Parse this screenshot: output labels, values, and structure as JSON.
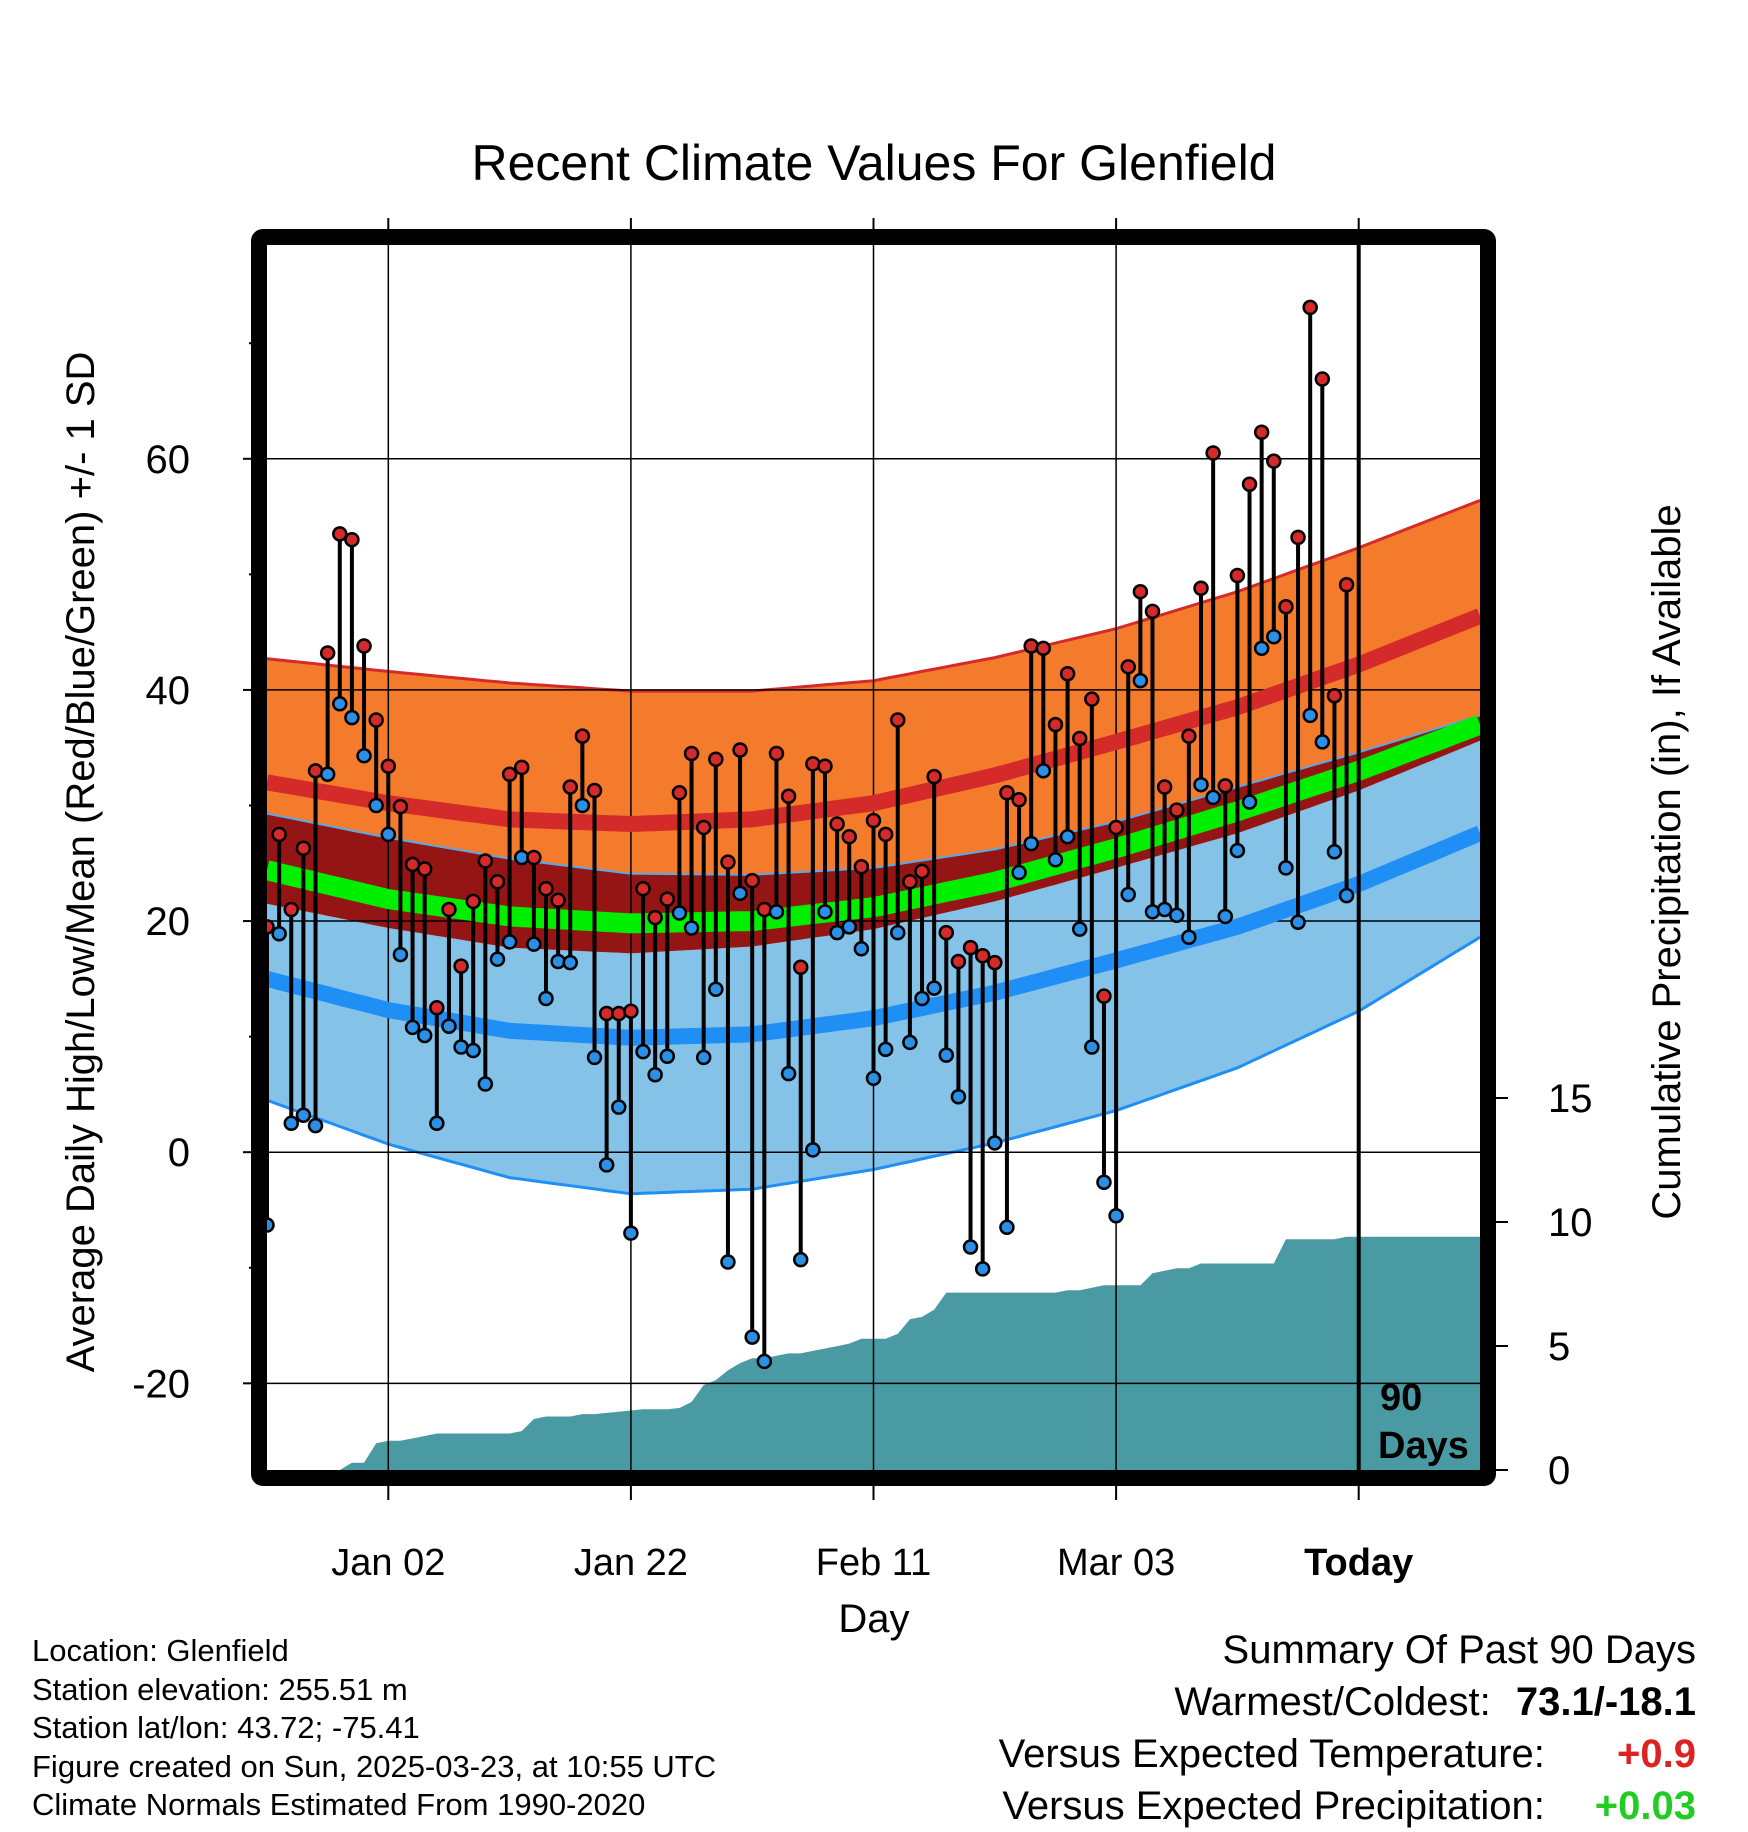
{
  "title": "Recent Climate Values For Glenfield",
  "y_label_left": "Average Daily High/Low/Mean (Red/Blue/Green) +/- 1 SD",
  "y_label_right": "Cumulative Precipitation (in), If Available",
  "x_label": "Day",
  "marker_text_1": "90",
  "marker_text_2": "Days",
  "info": {
    "location": "Location: Glenfield",
    "elevation": "Station elevation: 255.51 m",
    "latlon": "Station lat/lon: 43.72; -75.41",
    "created": "Figure created on Sun, 2025-03-23, at 10:55 UTC",
    "normals": "Climate Normals Estimated From 1990-2020"
  },
  "summary": {
    "heading": "Summary Of Past 90 Days",
    "warm_cold_label": "Warmest/Coldest:",
    "warm_cold_value": "73.1/-18.1",
    "temp_label": "Versus Expected Temperature:",
    "temp_value": "+0.9",
    "temp_color": "#dd2222",
    "precip_label": "Versus Expected Precipitation:",
    "precip_value": "+0.03",
    "precip_color": "#22cc22"
  },
  "chart_data": {
    "type": "line",
    "title": "Recent Climate Values For Glenfield",
    "xlabel": "Day",
    "ylabel": "Average Daily High/Low/Mean (Red/Blue/Green) +/- 1 SD",
    "y2label": "Cumulative Precipitation (in), If Available",
    "x_tick_labels": [
      "Jan 02",
      "Jan 22",
      "Feb 11",
      "Mar 03",
      "Today"
    ],
    "x_tick_days": [
      10,
      30,
      50,
      70,
      90
    ],
    "y_ticks": [
      -20,
      0,
      20,
      40,
      60
    ],
    "y_ticks_right": [
      0,
      5,
      10,
      15
    ],
    "ylim": [
      -27.5,
      78.5
    ],
    "xlim": [
      0,
      100
    ],
    "today_day": 90,
    "grid": true,
    "colors": {
      "high_band": "#f47b2c",
      "high_mean": "#d42a2a",
      "overlap_band": "#951515",
      "low_band": "#84c2e8",
      "low_mean": "#1f8ff5",
      "mean_line": "#00ee00",
      "precip": "#4a9aa4"
    },
    "normals": {
      "days": [
        0,
        10,
        20,
        30,
        40,
        50,
        60,
        70,
        80,
        90,
        100
      ],
      "high_mean": [
        32,
        30.2,
        28.8,
        28.4,
        28.8,
        30.2,
        32.6,
        35.5,
        38.5,
        42.2,
        46.4
      ],
      "high_sd_upper": [
        42.7,
        41.6,
        40.6,
        39.9,
        39.9,
        40.8,
        42.8,
        45.3,
        48.5,
        52.3,
        56.4
      ],
      "high_sd_lower": [
        29.3,
        27.2,
        25.4,
        24.1,
        24.0,
        24.6,
        26.2,
        28.6,
        31.6,
        34.6,
        37.8
      ],
      "low_mean": [
        15.0,
        12.3,
        10.5,
        9.9,
        10.2,
        11.6,
        13.8,
        16.6,
        19.5,
        23.2,
        27.6
      ],
      "low_sd_upper": [
        21.5,
        19.4,
        17.7,
        17.2,
        17.8,
        19.3,
        21.7,
        24.6,
        27.6,
        31.3,
        35.6
      ],
      "low_sd_lower": [
        4.5,
        0.7,
        -2.2,
        -3.6,
        -3.2,
        -1.5,
        0.8,
        3.6,
        7.3,
        12.2,
        18.6
      ],
      "mean_temp": [
        24.4,
        21.9,
        20.4,
        19.8,
        20.0,
        21.2,
        23.4,
        26.3,
        29.5,
        33.0,
        37.0
      ]
    },
    "series": [
      {
        "name": "High",
        "days": [
          0,
          1,
          2,
          3,
          4,
          5,
          6,
          7,
          8,
          9,
          10,
          11,
          12,
          13,
          14,
          15,
          16,
          17,
          18,
          19,
          20,
          21,
          22,
          23,
          24,
          25,
          26,
          27,
          28,
          29,
          30,
          31,
          32,
          33,
          34,
          35,
          36,
          37,
          38,
          39,
          40,
          41,
          42,
          43,
          44,
          45,
          46,
          47,
          48,
          49,
          50,
          51,
          52,
          53,
          54,
          55,
          56,
          57,
          58,
          59,
          60,
          61,
          62,
          63,
          64,
          65,
          66,
          67,
          68,
          69,
          70,
          71,
          72,
          73,
          74,
          75,
          76,
          77,
          78,
          79,
          80,
          81,
          82,
          83,
          84,
          85,
          86,
          87,
          88,
          89
        ],
        "values": [
          19.5,
          27.5,
          21,
          26.3,
          33,
          43.2,
          53.5,
          53,
          43.8,
          37.4,
          33.4,
          29.9,
          24.9,
          24.5,
          12.5,
          21,
          16.1,
          21.7,
          25.2,
          23.4,
          32.7,
          33.3,
          25.5,
          22.8,
          21.8,
          31.6,
          36,
          31.3,
          12,
          12,
          12.2,
          22.8,
          20.3,
          21.9,
          31.1,
          34.5,
          28.1,
          34,
          25.1,
          34.8,
          23.5,
          21,
          34.5,
          30.8,
          16,
          33.6,
          33.4,
          28.4,
          27.3,
          24.7,
          28.7,
          27.5,
          37.4,
          23.4,
          24.3,
          32.5,
          19,
          16.5,
          17.7,
          17,
          16.4,
          31.1,
          30.5,
          43.8,
          43.6,
          37,
          41.4,
          35.8,
          39.2,
          13.5,
          28.1,
          42,
          48.5,
          46.8,
          31.6,
          29.6,
          36,
          48.8,
          60.5,
          31.7,
          49.9,
          57.8,
          62.3,
          59.8,
          47.2,
          53.2,
          73.1,
          66.9,
          39.5,
          49.1
        ]
      },
      {
        "name": "Low",
        "days": [
          0,
          1,
          2,
          3,
          4,
          5,
          6,
          7,
          8,
          9,
          10,
          11,
          12,
          13,
          14,
          15,
          16,
          17,
          18,
          19,
          20,
          21,
          22,
          23,
          24,
          25,
          26,
          27,
          28,
          29,
          30,
          31,
          32,
          33,
          34,
          35,
          36,
          37,
          38,
          39,
          40,
          41,
          42,
          43,
          44,
          45,
          46,
          47,
          48,
          49,
          50,
          51,
          52,
          53,
          54,
          55,
          56,
          57,
          58,
          59,
          60,
          61,
          62,
          63,
          64,
          65,
          66,
          67,
          68,
          69,
          70,
          71,
          72,
          73,
          74,
          75,
          76,
          77,
          78,
          79,
          80,
          81,
          82,
          83,
          84,
          85,
          86,
          87,
          88,
          89
        ],
        "values": [
          -6.3,
          18.9,
          2.5,
          3.2,
          2.3,
          32.7,
          38.8,
          37.6,
          34.3,
          30,
          27.5,
          17.1,
          10.8,
          10.1,
          2.5,
          10.9,
          9.1,
          8.8,
          5.9,
          16.7,
          18.2,
          25.5,
          18,
          13.3,
          16.5,
          16.4,
          30,
          8.2,
          -1.1,
          3.9,
          -7,
          8.7,
          6.7,
          8.3,
          20.7,
          19.4,
          8.2,
          14.1,
          -9.5,
          22.4,
          -16,
          -18.1,
          20.8,
          6.8,
          -9.3,
          0.2,
          20.8,
          19,
          19.5,
          17.6,
          6.4,
          8.9,
          19,
          9.5,
          13.3,
          14.2,
          8.4,
          4.8,
          -8.2,
          -10.1,
          0.8,
          -6.5,
          24.2,
          26.7,
          33,
          25.3,
          27.3,
          19.3,
          9.1,
          -2.6,
          -5.5,
          22.3,
          40.8,
          20.8,
          21,
          20.5,
          18.6,
          31.8,
          30.7,
          20.4,
          26.1,
          30.3,
          43.6,
          44.6,
          24.6,
          19.9,
          37.8,
          35.5,
          26,
          22.2
        ]
      }
    ],
    "precipitation": {
      "name": "Cumulative Precipitation",
      "days": [
        6,
        7,
        8,
        9,
        10,
        11,
        12,
        13,
        14,
        15,
        16,
        17,
        18,
        19,
        20,
        21,
        22,
        23,
        24,
        25,
        26,
        27,
        28,
        29,
        30,
        31,
        32,
        33,
        34,
        35,
        36,
        37,
        38,
        39,
        40,
        41,
        42,
        43,
        44,
        45,
        46,
        47,
        48,
        49,
        50,
        51,
        52,
        53,
        54,
        55,
        56,
        57,
        58,
        59,
        60,
        61,
        62,
        63,
        64,
        65,
        66,
        67,
        68,
        69,
        70,
        71,
        72,
        73,
        74,
        75,
        76,
        77,
        78,
        79,
        80,
        81,
        82,
        83,
        84,
        85,
        86,
        87,
        88,
        89,
        90,
        100
      ],
      "values": [
        0,
        0.3,
        0.3,
        1.1,
        1.2,
        1.2,
        1.3,
        1.4,
        1.5,
        1.5,
        1.5,
        1.5,
        1.5,
        1.5,
        1.5,
        1.6,
        2.1,
        2.2,
        2.2,
        2.2,
        2.3,
        2.3,
        2.35,
        2.4,
        2.45,
        2.5,
        2.5,
        2.5,
        2.55,
        2.8,
        3.5,
        3.7,
        4.1,
        4.4,
        4.6,
        4.6,
        4.7,
        4.8,
        4.8,
        4.9,
        5,
        5.1,
        5.2,
        5.4,
        5.4,
        5.4,
        5.6,
        6.2,
        6.3,
        6.6,
        7.3,
        7.3,
        7.3,
        7.3,
        7.3,
        7.3,
        7.3,
        7.3,
        7.3,
        7.3,
        7.4,
        7.4,
        7.5,
        7.6,
        7.6,
        7.6,
        7.6,
        8.1,
        8.2,
        8.3,
        8.3,
        8.5,
        8.5,
        8.5,
        8.5,
        8.5,
        8.5,
        8.5,
        9.5,
        9.5,
        9.5,
        9.5,
        9.5,
        9.6,
        9.6,
        9.6
      ]
    }
  }
}
